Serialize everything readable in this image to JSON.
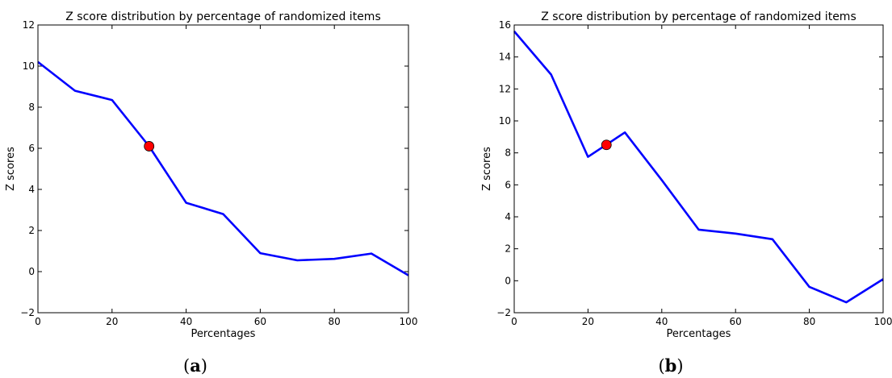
{
  "chart_data": [
    {
      "type": "line",
      "panel_label": "a",
      "title": "Z score distribution by percentage of randomized items",
      "xlabel": "Percentages",
      "ylabel": "Z scores",
      "xlim": [
        0,
        100
      ],
      "ylim": [
        -2,
        12
      ],
      "xticks": [
        0,
        20,
        40,
        60,
        80,
        100
      ],
      "yticks": [
        -2,
        0,
        2,
        4,
        6,
        8,
        10,
        12
      ],
      "grid": false,
      "line_color": "#0000ff",
      "x": [
        0,
        10,
        20,
        30,
        40,
        50,
        60,
        70,
        80,
        90,
        100
      ],
      "y": [
        10.2,
        8.8,
        8.35,
        6.1,
        3.35,
        2.8,
        0.9,
        0.55,
        0.62,
        0.88,
        -0.18
      ],
      "highlight_point": {
        "x": 30,
        "y": 6.1,
        "color": "#ff0000"
      }
    },
    {
      "type": "line",
      "panel_label": "b",
      "title": "Z score distribution by percentage of randomized items",
      "xlabel": "Percentages",
      "ylabel": "Z scores",
      "xlim": [
        0,
        100
      ],
      "ylim": [
        -2,
        16
      ],
      "xticks": [
        0,
        20,
        40,
        60,
        80,
        100
      ],
      "yticks": [
        -2,
        0,
        2,
        4,
        6,
        8,
        10,
        12,
        14,
        16
      ],
      "grid": false,
      "line_color": "#0000ff",
      "x": [
        0,
        10,
        20,
        30,
        40,
        50,
        60,
        70,
        80,
        90,
        100
      ],
      "y": [
        15.6,
        12.9,
        7.75,
        9.28,
        6.3,
        3.2,
        2.95,
        2.6,
        -0.38,
        -1.35,
        0.1
      ],
      "highlight_point": {
        "x": 25,
        "y": 8.5,
        "color": "#ff0000"
      }
    }
  ]
}
